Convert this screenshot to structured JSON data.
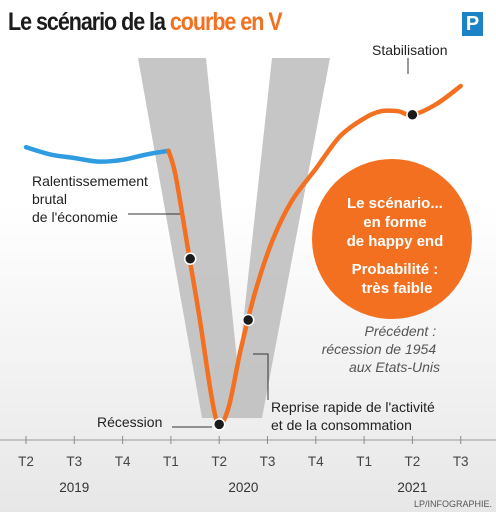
{
  "title": {
    "prefix": "Le scénario de la ",
    "accent": "courbe en V"
  },
  "logo": {
    "letter": "P"
  },
  "colors": {
    "accent": "#f37021",
    "before": "#2f9be0",
    "big_letter": "#bcbcbc",
    "text": "#1b1b1b"
  },
  "chart_data": {
    "type": "line",
    "title": "Le scénario de la courbe en V",
    "x_ticks": [
      "T2",
      "T3",
      "T4",
      "T1",
      "T2",
      "T3",
      "T4",
      "T1",
      "T2",
      "T3"
    ],
    "years": [
      "2019",
      "2020",
      "2021"
    ],
    "y_axis": "none (no numeric scale shown)",
    "series": [
      {
        "segment": "before",
        "color": "#2f9be0",
        "x": [
          0,
          0.5,
          1,
          1.5,
          2,
          2.5,
          2.95
        ],
        "y": [
          78,
          76,
          75,
          74,
          74.5,
          76,
          77
        ]
      },
      {
        "segment": "scenario",
        "color": "#f37021",
        "x": [
          2.95,
          3.1,
          3.35,
          3.6,
          3.85,
          4.0,
          4.2,
          4.45,
          4.75,
          5.1,
          5.5,
          6.0,
          6.5,
          7.0,
          7.35,
          7.7,
          8.0,
          8.5,
          9.0
        ],
        "y": [
          77,
          70,
          50,
          30,
          8,
          1,
          6,
          22,
          38,
          52,
          63,
          72,
          81,
          86,
          88,
          88,
          87,
          90,
          95
        ]
      }
    ],
    "markers": [
      {
        "label": "Ralentissemement brutal de l'économie",
        "x": 3.4,
        "y": 47
      },
      {
        "label": "Récession",
        "x": 4.0,
        "y": 1
      },
      {
        "label": "Reprise rapide de l'activité et de la consommation",
        "x": 4.6,
        "y": 30
      },
      {
        "label": "Stabilisation",
        "x": 8.0,
        "y": 87
      }
    ],
    "annotations": {
      "slowdown": [
        "Ralentissemement",
        "brutal",
        "de l'économie"
      ],
      "recession": "Récession",
      "recovery": [
        "Reprise rapide de l'activité",
        "et de la consommation"
      ],
      "stabilisation": "Stabilisation"
    },
    "scenario_box": [
      "Le scénario...",
      "en forme",
      "de happy end",
      "Probabilité :",
      "très faible"
    ],
    "precedent": [
      "Précédent :",
      "récession de 1954",
      "aux Etats-Unis"
    ],
    "big_letter": "V",
    "credit": "LP/INFOGRAPHIE."
  }
}
